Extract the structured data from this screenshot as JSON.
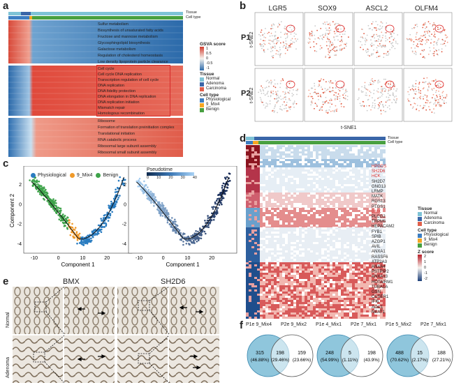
{
  "panels": {
    "a": "a",
    "b": "b",
    "c": "c",
    "d": "d",
    "e": "e",
    "f": "f"
  },
  "a": {
    "track_tissue": "Tissue",
    "track_celltype": "Cell type",
    "pathways_top": [
      "Sulfur metabolism",
      "Biosynthesis of unsaturated fatty acids",
      "Fructose and mannose metabolism",
      "Glycosphingolipid biosynthesis",
      "Galactose metabolism",
      "Regulation of cholesterol homeostasis",
      "Low density lipoprotein particle clearance"
    ],
    "pathways_mid": [
      "Cell cycle",
      "Cell cycle DNA replication",
      "Transcription regulation of cell cycle",
      "DNA replication",
      "DNA fidelity protection",
      "DNA elongation in DNA replication",
      "DNA replication initiation",
      "Mismatch repair",
      "Homologous recombination"
    ],
    "pathways_bot": [
      "Ribosome",
      "Formation of translation preinitiation complex",
      "Translational initiation",
      "RNA catabolic process",
      "Ribosomal large subunit assembly",
      "Ribosomal small subunit assembly"
    ],
    "legend": {
      "score_title": "GSVA score",
      "score_ticks": [
        "1",
        "0.5",
        "0",
        "-0.5",
        "-1"
      ],
      "tissue_title": "Tissue",
      "tissue": [
        {
          "label": "Normal",
          "color": "#7ec3d6"
        },
        {
          "label": "Adenoma",
          "color": "#3a66a8"
        },
        {
          "label": "Carcinoma",
          "color": "#e0604c"
        }
      ],
      "cell_title": "Cell type",
      "cell": [
        {
          "label": "Physiological",
          "color": "#3d7ec2"
        },
        {
          "label": "9_Mix4",
          "color": "#f5a623"
        },
        {
          "label": "Benign",
          "color": "#48a040"
        }
      ]
    }
  },
  "b": {
    "genes": [
      "LGR5",
      "SOX9",
      "ASCL2",
      "OLFM4"
    ],
    "rows": [
      "P1",
      "P2"
    ],
    "ylabel": "t-SNE2",
    "xlabel": "t-SNE1"
  },
  "c": {
    "legend1": [
      {
        "label": "Physiological",
        "color": "#2a7cc0"
      },
      {
        "label": "9_Mix4",
        "color": "#f09a2a"
      },
      {
        "label": "Benign",
        "color": "#3ea34a"
      }
    ],
    "pseudotime_title": "Pseudotime",
    "pseudotime_ticks": [
      "0",
      "10",
      "20",
      "30",
      "40"
    ],
    "xlabel": "Component 1",
    "ylabel": "Component 2",
    "xticks": [
      "-10",
      "0",
      "10",
      "20"
    ],
    "yticks": [
      "2",
      "0",
      "-2",
      "-4"
    ]
  },
  "d": {
    "track_tissue": "Tissue",
    "track_celltype": "Cell type",
    "genes": [
      "HPGDS",
      "SH2D6",
      "HCK",
      "SH2D7",
      "GNG13",
      "LRMP",
      "MATK",
      "RGS13",
      "PTGS1",
      "BMX",
      "PLCG2",
      "TRPM5",
      "HEPACAM2",
      "FYB1",
      "SPIB",
      "AZGP1",
      "AVIL",
      "ANXA1",
      "RASSF6",
      "ATP2A3",
      "ANXA4",
      "PSTPIP2",
      "ANXA13",
      "HOTAIRM1",
      "TUBA1A",
      "GSN",
      "CCSER1",
      "IFI6",
      "AOC1",
      "NEAT1"
    ],
    "red_genes": [
      "HPGDS",
      "SH2D6",
      "HCK",
      "BMX"
    ],
    "legend": {
      "tissue_title": "Tissue",
      "tissue": [
        {
          "label": "Normal",
          "color": "#7ec3d6"
        },
        {
          "label": "Adenoma",
          "color": "#3a66a8"
        },
        {
          "label": "Carcinoma",
          "color": "#e0604c"
        }
      ],
      "cell_title": "Cell type",
      "cell": [
        {
          "label": "Physiological",
          "color": "#3d7ec2"
        },
        {
          "label": "9_Mix4",
          "color": "#f5a623"
        },
        {
          "label": "Benign",
          "color": "#48a040"
        }
      ],
      "z_title": "Z score",
      "z_ticks": [
        "2",
        "1",
        "0",
        "-1",
        "-2"
      ]
    }
  },
  "e": {
    "col1": "BMX",
    "col2": "SH2D6",
    "row1": "Normal",
    "row2": "Adenoma"
  },
  "f": {
    "venns": [
      {
        "left": "P1e 9_Mix4",
        "right": "P2e 9_Mix2",
        "a": "315",
        "a_pct": "(46.88%)",
        "ab": "198",
        "ab_pct": "(29.46%)",
        "b": "159",
        "b_pct": "(23.66%)"
      },
      {
        "left": "P1e 4_Mix1",
        "right": "P2e 7_Mix1",
        "a": "248",
        "a_pct": "(54.99%)",
        "ab": "5",
        "ab_pct": "(1.11%)",
        "b": "198",
        "b_pct": "(43.9%)"
      },
      {
        "left": "P1e 5_Mix2",
        "right": "P2e 7_Mix1",
        "a": "488",
        "a_pct": "(70.62%)",
        "ab": "15",
        "ab_pct": "(2.17%)",
        "b": "188",
        "b_pct": "(27.21%)"
      }
    ]
  }
}
